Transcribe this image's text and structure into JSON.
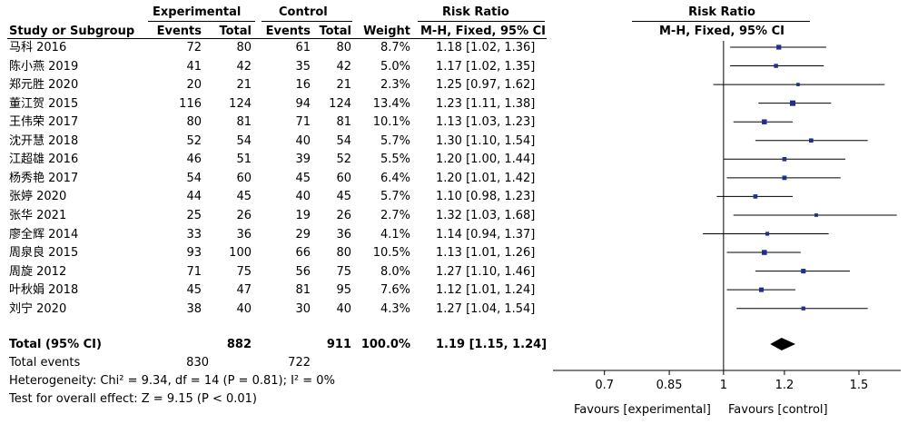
{
  "headers": {
    "group_experimental": "Experimental",
    "group_control": "Control",
    "group_risk_ratio": "Risk Ratio",
    "plot_title": "Risk Ratio",
    "study": "Study or Subgroup",
    "events_e": "Events",
    "total_e": "Total",
    "events_c": "Events",
    "total_c": "Total",
    "weight": "Weight",
    "method": "M-H, Fixed, 95% CI",
    "plot_method": "M-H, Fixed, 95% CI"
  },
  "studies": [
    {
      "name": "马科 2016",
      "events_e": "72",
      "total_e": "80",
      "events_c": "61",
      "total_c": "80",
      "weight": "8.7%",
      "ci": "1.18 [1.02, 1.36]"
    },
    {
      "name": "陈小燕 2019",
      "events_e": "41",
      "total_e": "42",
      "events_c": "35",
      "total_c": "42",
      "weight": "5.0%",
      "ci": "1.17 [1.02, 1.35]"
    },
    {
      "name": "郑元胜 2020",
      "events_e": "20",
      "total_e": "21",
      "events_c": "16",
      "total_c": "21",
      "weight": "2.3%",
      "ci": "1.25 [0.97, 1.62]"
    },
    {
      "name": "董江贺 2015",
      "events_e": "116",
      "total_e": "124",
      "events_c": "94",
      "total_c": "124",
      "weight": "13.4%",
      "ci": "1.23 [1.11, 1.38]"
    },
    {
      "name": "王伟荣 2017",
      "events_e": "80",
      "total_e": "81",
      "events_c": "71",
      "total_c": "81",
      "weight": "10.1%",
      "ci": "1.13 [1.03, 1.23]"
    },
    {
      "name": "沈开慧 2018",
      "events_e": "52",
      "total_e": "54",
      "events_c": "40",
      "total_c": "54",
      "weight": "5.7%",
      "ci": "1.30 [1.10, 1.54]"
    },
    {
      "name": "江超雄 2016",
      "events_e": "46",
      "total_e": "51",
      "events_c": "39",
      "total_c": "52",
      "weight": "5.5%",
      "ci": "1.20 [1.00, 1.44]"
    },
    {
      "name": "杨秀艳 2017",
      "events_e": "54",
      "total_e": "60",
      "events_c": "45",
      "total_c": "60",
      "weight": "6.4%",
      "ci": "1.20 [1.01, 1.42]"
    },
    {
      "name": "张婷 2020",
      "events_e": "44",
      "total_e": "45",
      "events_c": "40",
      "total_c": "45",
      "weight": "5.7%",
      "ci": "1.10 [0.98, 1.23]"
    },
    {
      "name": "张华 2021",
      "events_e": "25",
      "total_e": "26",
      "events_c": "19",
      "total_c": "26",
      "weight": "2.7%",
      "ci": "1.32 [1.03, 1.68]"
    },
    {
      "name": "廖全辉 2014",
      "events_e": "33",
      "total_e": "36",
      "events_c": "29",
      "total_c": "36",
      "weight": "4.1%",
      "ci": "1.14 [0.94, 1.37]"
    },
    {
      "name": "周泉良 2015",
      "events_e": "93",
      "total_e": "100",
      "events_c": "66",
      "total_c": "80",
      "weight": "10.5%",
      "ci": "1.13 [1.01, 1.26]"
    },
    {
      "name": "周旋 2012",
      "events_e": "71",
      "total_e": "75",
      "events_c": "56",
      "total_c": "75",
      "weight": "8.0%",
      "ci": "1.27 [1.10, 1.46]"
    },
    {
      "name": "叶秋娟 2018",
      "events_e": "45",
      "total_e": "47",
      "events_c": "81",
      "total_c": "95",
      "weight": "7.6%",
      "ci": "1.12 [1.01, 1.24]"
    },
    {
      "name": "刘宁 2020",
      "events_e": "38",
      "total_e": "40",
      "events_c": "30",
      "total_c": "40",
      "weight": "4.3%",
      "ci": "1.27 [1.04, 1.54]"
    }
  ],
  "total": {
    "label": "Total (95% CI)",
    "total_e": "882",
    "total_c": "911",
    "weight": "100.0%",
    "ci": "1.19 [1.15, 1.24]"
  },
  "total_events": {
    "label": "Total events",
    "events_e": "830",
    "events_c": "722"
  },
  "heterogeneity": "Heterogeneity: Chi² = 9.34, df = 14 (P = 0.81); I² = 0%",
  "overall_effect": "Test for overall effect: Z = 9.15 (P < 0.01)",
  "favours_left": "Favours [experimental]",
  "favours_right": "Favours [control]",
  "colors": {
    "square": "#1f2f8f",
    "line": "#000000",
    "diamond": "#000000"
  },
  "chart_data": {
    "type": "forest",
    "axis": {
      "scale": "log",
      "xlim": [
        0.6,
        1.7
      ],
      "ticks": [
        0.7,
        0.85,
        1,
        1.2,
        1.5
      ],
      "tick_labels": [
        "0.7",
        "0.85",
        "1",
        "1.2",
        "1.5"
      ],
      "reference_line": 1
    },
    "studies": [
      {
        "name": "马科 2016",
        "rr": 1.18,
        "lo": 1.02,
        "hi": 1.36,
        "weight": 8.7
      },
      {
        "name": "陈小燕 2019",
        "rr": 1.17,
        "lo": 1.02,
        "hi": 1.35,
        "weight": 5.0
      },
      {
        "name": "郑元胜 2020",
        "rr": 1.25,
        "lo": 0.97,
        "hi": 1.62,
        "weight": 2.3
      },
      {
        "name": "董江贺 2015",
        "rr": 1.23,
        "lo": 1.11,
        "hi": 1.38,
        "weight": 13.4
      },
      {
        "name": "王伟荣 2017",
        "rr": 1.13,
        "lo": 1.03,
        "hi": 1.23,
        "weight": 10.1
      },
      {
        "name": "沈开慧 2018",
        "rr": 1.3,
        "lo": 1.1,
        "hi": 1.54,
        "weight": 5.7
      },
      {
        "name": "江超雄 2016",
        "rr": 1.2,
        "lo": 1.0,
        "hi": 1.44,
        "weight": 5.5
      },
      {
        "name": "杨秀艳 2017",
        "rr": 1.2,
        "lo": 1.01,
        "hi": 1.42,
        "weight": 6.4
      },
      {
        "name": "张婷 2020",
        "rr": 1.1,
        "lo": 0.98,
        "hi": 1.23,
        "weight": 5.7
      },
      {
        "name": "张华 2021",
        "rr": 1.32,
        "lo": 1.03,
        "hi": 1.68,
        "weight": 2.7
      },
      {
        "name": "廖全辉 2014",
        "rr": 1.14,
        "lo": 0.94,
        "hi": 1.37,
        "weight": 4.1
      },
      {
        "name": "周泉良 2015",
        "rr": 1.13,
        "lo": 1.01,
        "hi": 1.26,
        "weight": 10.5
      },
      {
        "name": "周旋 2012",
        "rr": 1.27,
        "lo": 1.1,
        "hi": 1.46,
        "weight": 8.0
      },
      {
        "name": "叶秋娟 2018",
        "rr": 1.12,
        "lo": 1.01,
        "hi": 1.24,
        "weight": 7.6
      },
      {
        "name": "刘宁 2020",
        "rr": 1.27,
        "lo": 1.04,
        "hi": 1.54,
        "weight": 4.3
      }
    ],
    "pooled": {
      "rr": 1.19,
      "lo": 1.15,
      "hi": 1.24
    }
  }
}
